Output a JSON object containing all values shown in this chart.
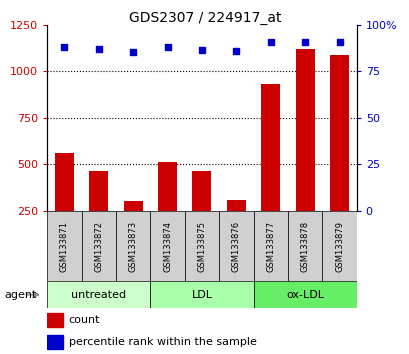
{
  "title": "GDS2307 / 224917_at",
  "samples": [
    "GSM133871",
    "GSM133872",
    "GSM133873",
    "GSM133874",
    "GSM133875",
    "GSM133876",
    "GSM133877",
    "GSM133878",
    "GSM133879"
  ],
  "counts": [
    560,
    465,
    300,
    510,
    465,
    305,
    930,
    1120,
    1090
  ],
  "percentile_ranks": [
    1130,
    1120,
    1105,
    1130,
    1115,
    1110,
    1155,
    1160,
    1155
  ],
  "ylim": [
    250,
    1250
  ],
  "yticks": [
    250,
    500,
    750,
    1000,
    1250
  ],
  "right_yticks": [
    0,
    25,
    50,
    75,
    100
  ],
  "right_ytick_labels": [
    "0",
    "25",
    "50",
    "75",
    "100%"
  ],
  "bar_color": "#cc0000",
  "dot_color": "#0000cc",
  "groups": [
    {
      "label": "untreated",
      "start": 0,
      "end": 3,
      "color": "#ccffcc"
    },
    {
      "label": "LDL",
      "start": 3,
      "end": 6,
      "color": "#aaffaa"
    },
    {
      "label": "ox-LDL",
      "start": 6,
      "end": 9,
      "color": "#66ee66"
    }
  ],
  "agent_label": "agent",
  "legend_count_label": "count",
  "legend_percentile_label": "percentile rank within the sample",
  "bar_bottom": 250,
  "grid_yticks": [
    500,
    750,
    1000
  ],
  "sample_bg": "#d0d0d0"
}
